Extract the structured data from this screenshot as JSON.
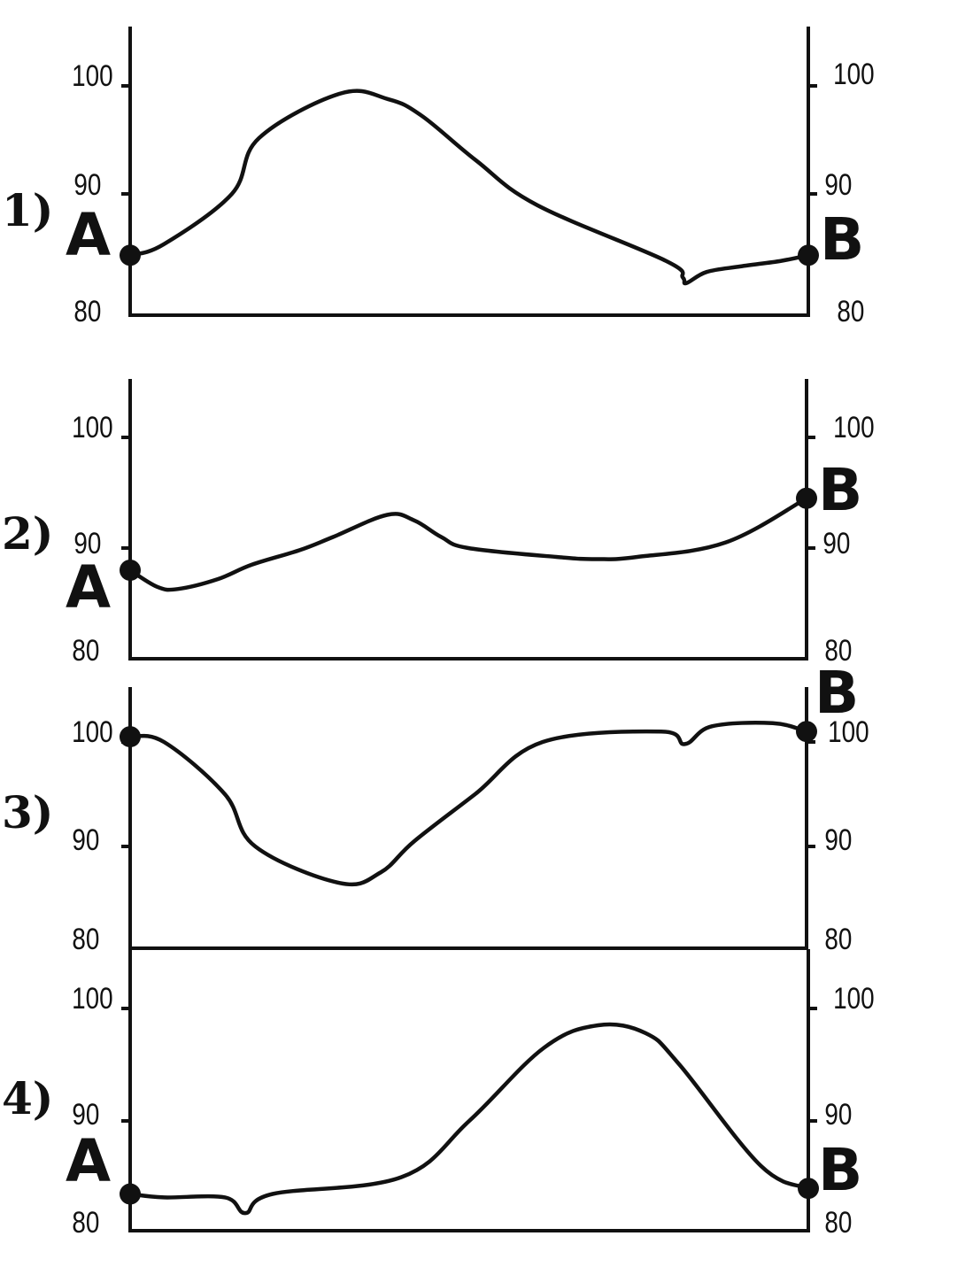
{
  "chart_data": [
    {
      "type": "line",
      "label": "1)",
      "point_a": "A",
      "point_b": "B",
      "yticks": [
        "100",
        "90",
        "80"
      ],
      "x": [
        0,
        0.05,
        0.15,
        0.19,
        0.31,
        0.38,
        0.43,
        0.51,
        0.6,
        0.79,
        0.815,
        0.82,
        0.85,
        0.9,
        0.96,
        1.0
      ],
      "y": [
        84.5,
        85.5,
        90,
        95,
        99,
        98.5,
        97,
        93,
        89,
        84,
        82.5,
        82,
        83,
        83.5,
        84,
        84.5
      ],
      "ylim": [
        80,
        105
      ]
    },
    {
      "type": "line",
      "label": "2)",
      "point_a": "A",
      "point_b": "B",
      "yticks": [
        "100",
        "90",
        "80"
      ],
      "x": [
        0,
        0.04,
        0.07,
        0.13,
        0.18,
        0.25,
        0.3,
        0.38,
        0.42,
        0.46,
        0.5,
        0.63,
        0.69,
        0.75,
        0.88,
        1.0
      ],
      "y": [
        88,
        86.5,
        86.3,
        87.2,
        88.5,
        89.8,
        91,
        93,
        92.5,
        91,
        90,
        89.2,
        89,
        89.2,
        90.5,
        94.5
      ],
      "ylim": [
        80,
        105
      ]
    },
    {
      "type": "line",
      "label": "3)",
      "point_a": "",
      "point_b": "B",
      "yticks": [
        "100",
        "90",
        "80"
      ],
      "x": [
        0,
        0.05,
        0.14,
        0.185,
        0.31,
        0.37,
        0.42,
        0.51,
        0.61,
        0.785,
        0.82,
        0.86,
        0.95,
        1.0
      ],
      "y": [
        100.5,
        100,
        95,
        90,
        86.5,
        87.5,
        90.5,
        95,
        100,
        101,
        99.8,
        101.5,
        101.8,
        101
      ],
      "ylim": [
        80,
        105
      ]
    },
    {
      "type": "line",
      "label": "4)",
      "point_a": "A",
      "point_b": "B",
      "yticks": [
        "100",
        "90",
        "80"
      ],
      "x": [
        0,
        0.05,
        0.14,
        0.17,
        0.21,
        0.4,
        0.5,
        0.61,
        0.69,
        0.76,
        0.81,
        0.93,
        1.0
      ],
      "y": [
        83.5,
        83.2,
        83.2,
        81.8,
        83.5,
        85,
        90,
        96.5,
        98.5,
        97.8,
        95,
        86,
        84
      ],
      "ylim": [
        80,
        105
      ]
    }
  ]
}
